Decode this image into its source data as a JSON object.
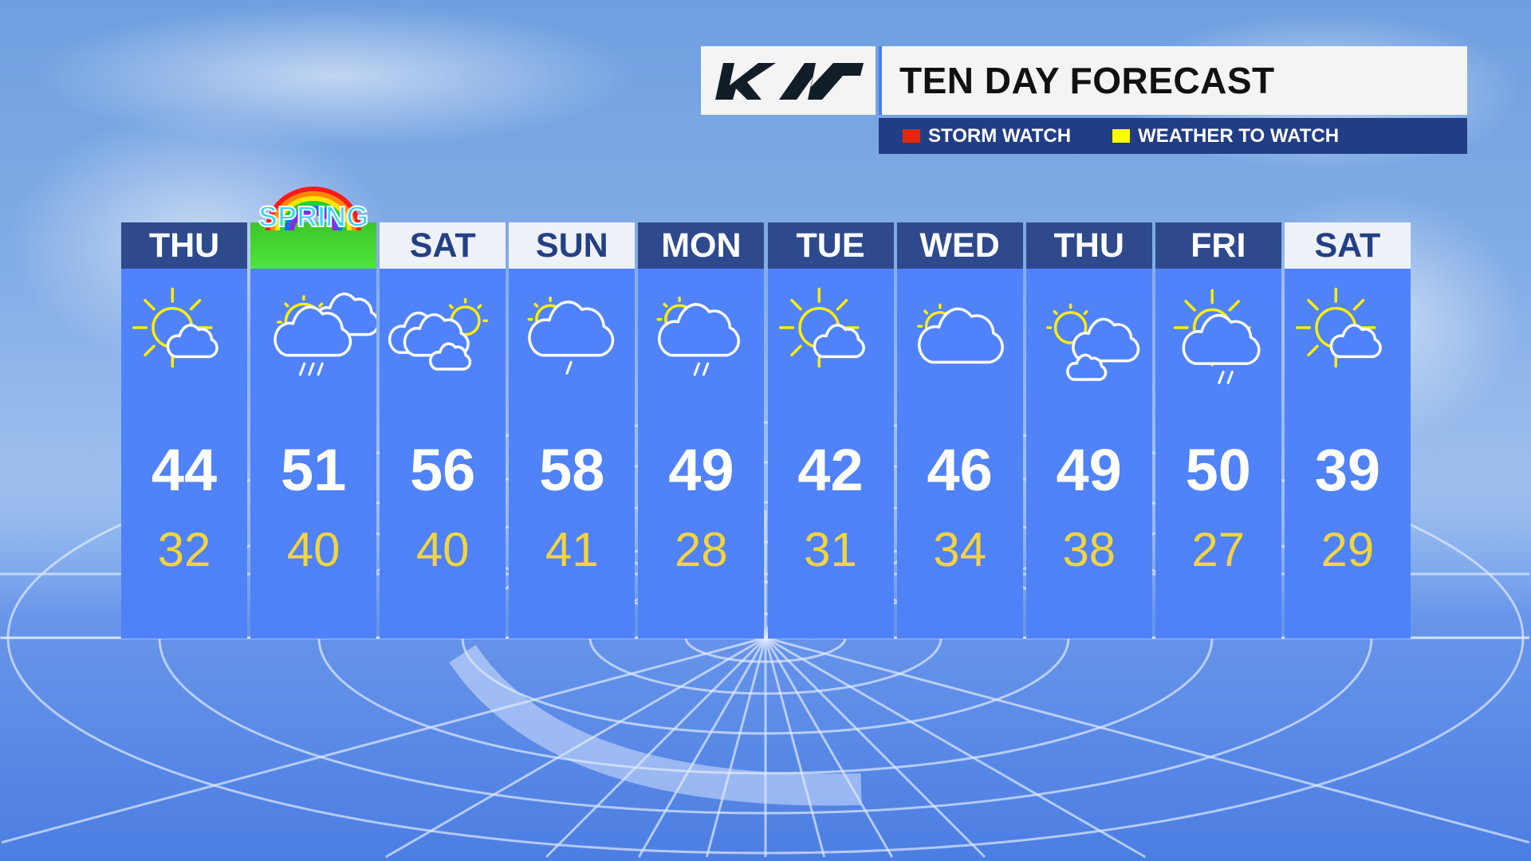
{
  "header": {
    "logo_text": "KIA",
    "title": "TEN DAY FORECAST"
  },
  "legend": [
    {
      "label": "STORM WATCH",
      "color": "#e0280f"
    },
    {
      "label": "WEATHER TO WATCH",
      "color": "#ffff00"
    }
  ],
  "colors": {
    "dark_header": "#2e4a8c",
    "light_header": "#eef2f8",
    "panel": "#5083fb",
    "low_temp": "#f3d43c"
  },
  "days": [
    {
      "day": "THU",
      "header_style": "dark",
      "icon": "mostly-sunny",
      "high": "44",
      "low": "32"
    },
    {
      "day": "",
      "header_style": "spring",
      "badge": "SPRING",
      "icon": "sun-cloud-rain",
      "high": "51",
      "low": "40"
    },
    {
      "day": "SAT",
      "header_style": "light",
      "icon": "clouds-sun",
      "high": "56",
      "low": "40"
    },
    {
      "day": "SUN",
      "header_style": "light",
      "icon": "cloud-light-rain",
      "high": "58",
      "low": "41"
    },
    {
      "day": "MON",
      "header_style": "dark",
      "icon": "cloud-rain",
      "high": "49",
      "low": "28"
    },
    {
      "day": "TUE",
      "header_style": "dark",
      "icon": "mostly-sunny",
      "high": "42",
      "low": "31"
    },
    {
      "day": "WED",
      "header_style": "dark",
      "icon": "mostly-cloudy",
      "high": "46",
      "low": "34"
    },
    {
      "day": "THU",
      "header_style": "dark",
      "icon": "partly-cloudy",
      "high": "49",
      "low": "38"
    },
    {
      "day": "FRI",
      "header_style": "dark",
      "icon": "sun-cloud-showers",
      "high": "50",
      "low": "27"
    },
    {
      "day": "SAT",
      "header_style": "light",
      "icon": "mostly-sunny",
      "high": "39",
      "low": "29"
    }
  ]
}
